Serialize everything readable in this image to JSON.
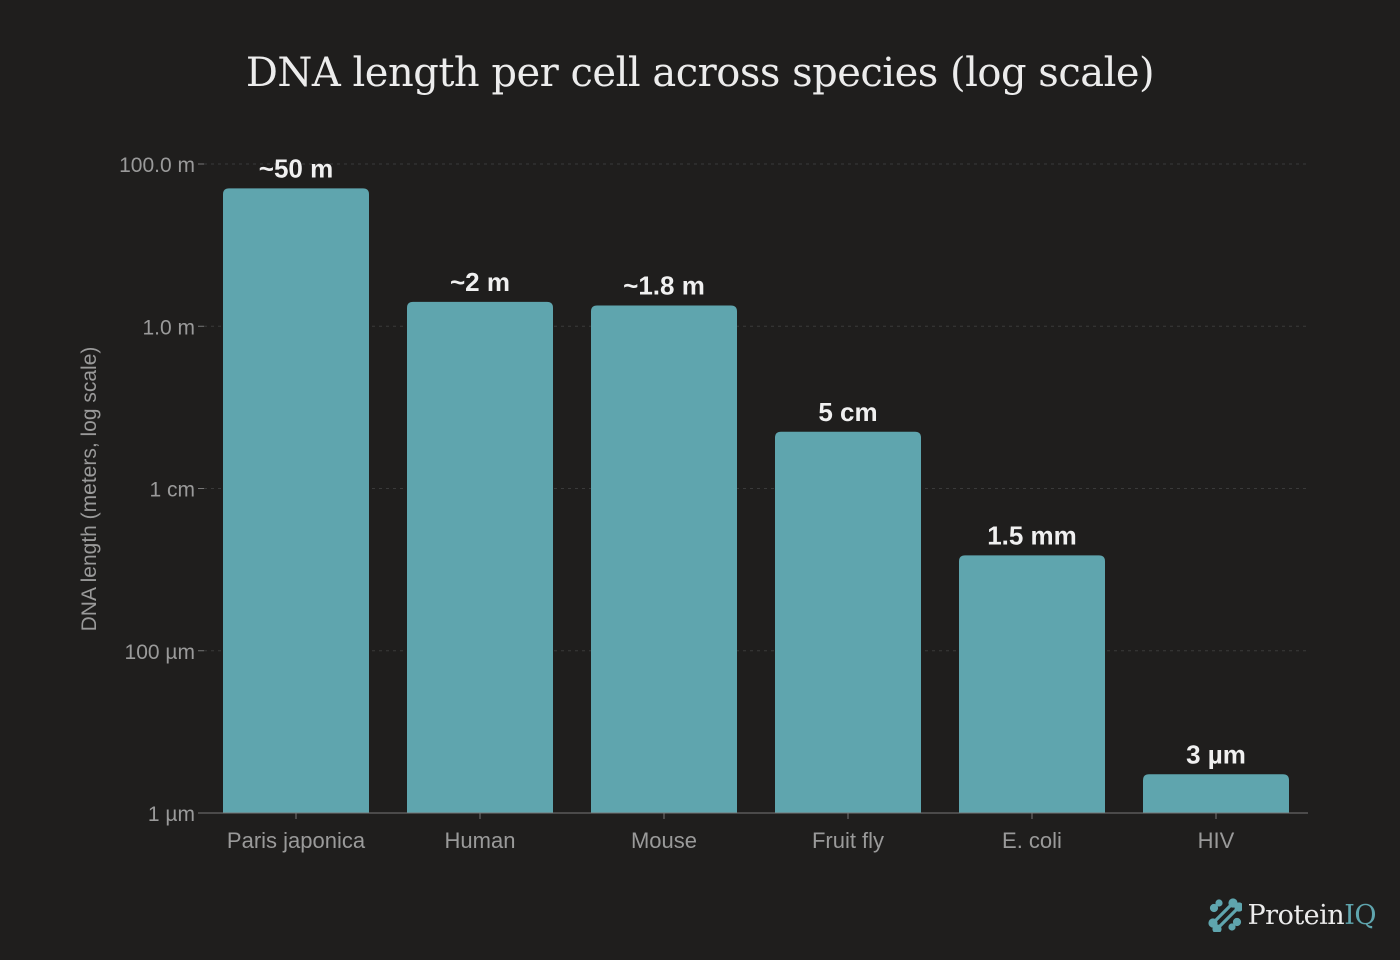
{
  "chart_data": {
    "type": "bar",
    "title": "DNA length per cell across species (log scale)",
    "xlabel": "",
    "ylabel": "DNA length (meters, log scale)",
    "yscale": "log",
    "ylim": [
      1e-06,
      100
    ],
    "yticks": [
      {
        "value": 100,
        "label": "100.0 m"
      },
      {
        "value": 1,
        "label": "1.0 m"
      },
      {
        "value": 0.01,
        "label": "1 cm"
      },
      {
        "value": 0.0001,
        "label": "100 µm"
      },
      {
        "value": 1e-06,
        "label": "1 µm"
      }
    ],
    "categories": [
      "Paris japonica",
      "Human",
      "Mouse",
      "Fruit fly",
      "E. coli",
      "HIV"
    ],
    "values": [
      50,
      2,
      1.8,
      0.05,
      0.0015,
      3e-06
    ],
    "data_labels": [
      "~50 m",
      "~2 m",
      "~1.8 m",
      "5 cm",
      "1.5 mm",
      "3 µm"
    ],
    "grid": true,
    "bar_color": "#5fa5ae",
    "background": "#1f1e1d"
  },
  "brand": {
    "name_part1": "Protein",
    "name_part2": "IQ",
    "icon": "protein-network-icon"
  }
}
